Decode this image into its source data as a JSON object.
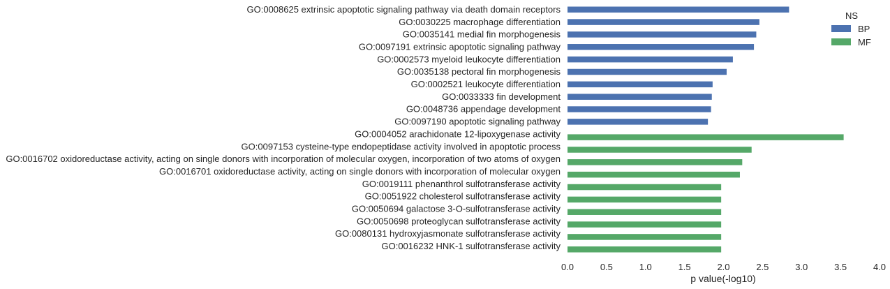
{
  "chart_data": {
    "type": "bar",
    "orientation": "horizontal",
    "xlabel": "p value(-log10)",
    "xlim": [
      0,
      4.0
    ],
    "xticks": [
      "0.0",
      "0.5",
      "1.0",
      "1.5",
      "2.0",
      "2.5",
      "3.0",
      "3.5",
      "4.0"
    ],
    "grid": false,
    "legend": {
      "title": "NS",
      "placement": "top-right",
      "entries": [
        {
          "name": "BP",
          "color": "#4c72b0"
        },
        {
          "name": "MF",
          "color": "#55a868"
        }
      ]
    },
    "bars": [
      {
        "label": "GO:0008625 extrinsic apoptotic signaling pathway via death domain receptors",
        "value": 2.84,
        "ns": "BP"
      },
      {
        "label": "GO:0030225 macrophage differentiation",
        "value": 2.46,
        "ns": "BP"
      },
      {
        "label": "GO:0035141 medial fin morphogenesis",
        "value": 2.42,
        "ns": "BP"
      },
      {
        "label": "GO:0097191 extrinsic apoptotic signaling pathway",
        "value": 2.39,
        "ns": "BP"
      },
      {
        "label": "GO:0002573 myeloid leukocyte differentiation",
        "value": 2.12,
        "ns": "BP"
      },
      {
        "label": "GO:0035138 pectoral fin morphogenesis",
        "value": 2.04,
        "ns": "BP"
      },
      {
        "label": "GO:0002521 leukocyte differentiation",
        "value": 1.86,
        "ns": "BP"
      },
      {
        "label": "GO:0033333 fin development",
        "value": 1.85,
        "ns": "BP"
      },
      {
        "label": "GO:0048736 appendage development",
        "value": 1.84,
        "ns": "BP"
      },
      {
        "label": "GO:0097190 apoptotic signaling pathway",
        "value": 1.8,
        "ns": "BP"
      },
      {
        "label": "GO:0004052 arachidonate 12-lipoxygenase activity",
        "value": 3.54,
        "ns": "MF"
      },
      {
        "label": "GO:0097153 cysteine-type endopeptidase activity involved in apoptotic process",
        "value": 2.36,
        "ns": "MF"
      },
      {
        "label": "GO:0016702 oxidoreductase activity, acting on single donors with incorporation of molecular oxygen, incorporation of two atoms of oxygen",
        "value": 2.24,
        "ns": "MF"
      },
      {
        "label": "GO:0016701 oxidoreductase activity, acting on single donors with incorporation of molecular oxygen",
        "value": 2.21,
        "ns": "MF"
      },
      {
        "label": "GO:0019111 phenanthrol sulfotransferase activity",
        "value": 1.97,
        "ns": "MF"
      },
      {
        "label": "GO:0051922 cholesterol sulfotransferase activity",
        "value": 1.97,
        "ns": "MF"
      },
      {
        "label": "GO:0050694 galactose 3-O-sulfotransferase activity",
        "value": 1.97,
        "ns": "MF"
      },
      {
        "label": "GO:0050698 proteoglycan sulfotransferase activity",
        "value": 1.97,
        "ns": "MF"
      },
      {
        "label": "GO:0080131 hydroxyjasmonate sulfotransferase activity",
        "value": 1.97,
        "ns": "MF"
      },
      {
        "label": "GO:0016232 HNK-1 sulfotransferase activity",
        "value": 1.97,
        "ns": "MF"
      }
    ]
  }
}
